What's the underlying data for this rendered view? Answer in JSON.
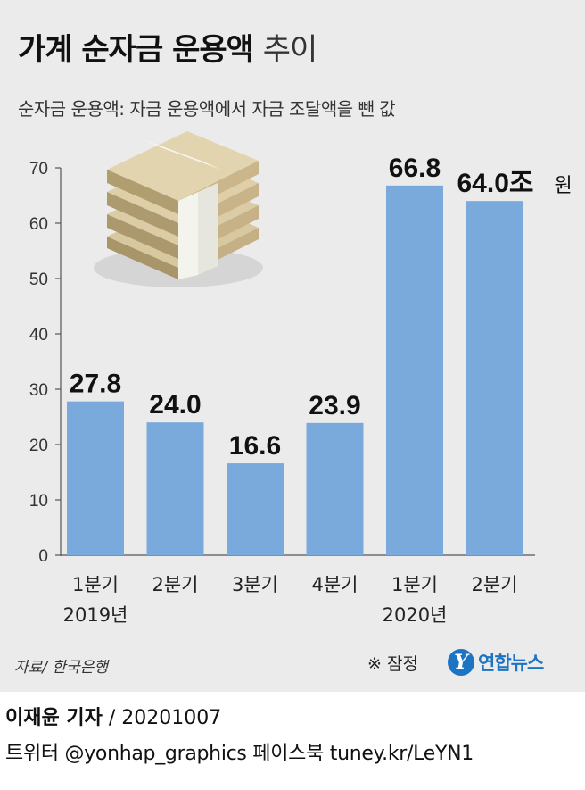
{
  "header": {
    "title_main": "가계 순자금 운용액",
    "title_light": "추이",
    "subtitle": "순자금 운용액: 자금 운용액에서 자금 조달액을 뺀 값"
  },
  "chart_data": {
    "type": "bar",
    "categories": [
      "1분기",
      "2분기",
      "3분기",
      "4분기",
      "1분기",
      "2분기"
    ],
    "year_labels": [
      "2019년",
      "",
      "",
      "",
      "2020년",
      ""
    ],
    "values": [
      27.8,
      24.0,
      16.6,
      23.9,
      66.8,
      64.0
    ],
    "value_labels": [
      "27.8",
      "24.0",
      "16.6",
      "23.9",
      "66.8",
      "64.0조"
    ],
    "unit_label": "원",
    "ylim": [
      0,
      70
    ],
    "yticks": [
      0,
      10,
      20,
      30,
      40,
      50,
      60,
      70
    ],
    "grid": false,
    "bar_color": "#7aaadb",
    "axis_color": "#555555",
    "illustration": "money-stack-icon"
  },
  "footer": {
    "source": "자료/ 한국은행",
    "note": "※ 잠정",
    "logo_mark": "Y",
    "logo_text": "연합뉴스",
    "reporter": "이재윤 기자",
    "date": "/ 20201007",
    "social": "트위터 @yonhap_graphics  페이스북 tuney.kr/LeYN1"
  },
  "colors": {
    "panel_bg": "#ebebeb",
    "brand_blue": "#1d74c2"
  }
}
